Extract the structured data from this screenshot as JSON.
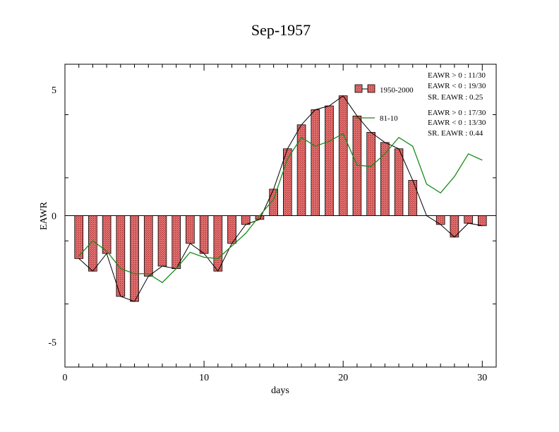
{
  "chart_data": {
    "type": "bar",
    "title": "Sep-1957",
    "xlabel": "days",
    "ylabel": "EAWR",
    "xlim": [
      0,
      31
    ],
    "ylim": [
      -6,
      6
    ],
    "x_ticks": [
      0,
      10,
      20,
      30
    ],
    "y_ticks": [
      -5,
      0,
      5
    ],
    "grid": false,
    "colors": {
      "bar_fill": "#e07070",
      "bar_hatch": "#b03030",
      "bar_stroke": "#000000",
      "bar_line": "#000000",
      "climatology_line": "#1a8a1a"
    },
    "days": [
      1,
      2,
      3,
      4,
      5,
      6,
      7,
      8,
      9,
      10,
      11,
      12,
      13,
      14,
      15,
      16,
      17,
      18,
      19,
      20,
      21,
      22,
      23,
      24,
      25,
      26,
      27,
      28,
      29,
      30
    ],
    "series": [
      {
        "name": "1950-2000",
        "type": "bar",
        "values": [
          -1.7,
          -2.2,
          -1.5,
          -3.2,
          -3.4,
          -2.4,
          -2.0,
          -2.1,
          -1.1,
          -1.5,
          -2.2,
          -1.1,
          -0.35,
          -0.15,
          1.05,
          2.65,
          3.6,
          4.2,
          4.35,
          4.75,
          3.95,
          3.3,
          2.9,
          2.65,
          1.4,
          0.0,
          -0.35,
          -0.85,
          -0.3,
          -0.4
        ]
      },
      {
        "name": "81-10",
        "type": "line",
        "values": [
          -1.6,
          -1.0,
          -1.4,
          -2.1,
          -2.3,
          -2.3,
          -2.65,
          -2.1,
          -1.45,
          -1.65,
          -1.7,
          -1.2,
          -0.7,
          0.0,
          0.65,
          2.25,
          3.1,
          2.75,
          2.95,
          3.25,
          2.0,
          1.95,
          2.45,
          3.1,
          2.75,
          1.25,
          0.9,
          1.55,
          2.45,
          2.2
        ]
      }
    ],
    "legend": {
      "placement": "top-right",
      "entries": [
        "1950-2000",
        "81-10"
      ]
    },
    "annotations": {
      "block1": [
        "EAWR > 0 : 11/30",
        "EAWR < 0 : 19/30",
        "SR. EAWR :  0.25"
      ],
      "block2": [
        "EAWR > 0 : 17/30",
        "EAWR < 0 : 13/30",
        "SR. EAWR :  0.44"
      ]
    }
  }
}
